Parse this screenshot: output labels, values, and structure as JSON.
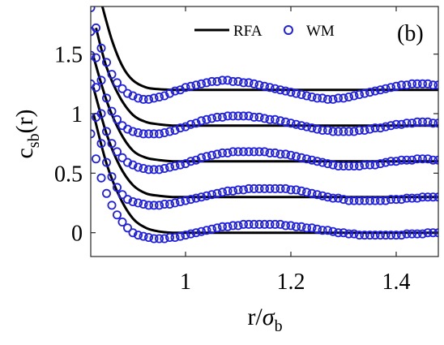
{
  "chart_data": {
    "type": "line",
    "panel_label": "(b)",
    "xlabel": {
      "main": "r/",
      "greek": "σ",
      "sub": "b"
    },
    "ylabel": {
      "main": "c",
      "sub": "sb",
      "tail": "(r)"
    },
    "xlim": [
      0.82,
      1.48
    ],
    "ylim": [
      -0.2,
      1.9
    ],
    "xticks": [
      1,
      1.2,
      1.4
    ],
    "xtick_labels": [
      "1",
      "1.2",
      "1.4"
    ],
    "yticks": [
      0,
      0.5,
      1,
      1.5
    ],
    "ytick_labels": [
      "0",
      "0.5",
      "1",
      "1.5"
    ],
    "grid": false,
    "legend_position": "top",
    "legend": [
      {
        "label": "RFA",
        "style": "line",
        "color": "#000000"
      },
      {
        "label": "WM",
        "style": "circle",
        "color": "#1f1fe6"
      }
    ],
    "colors": {
      "rfa": "#000000",
      "wm": "#1f1fe6"
    },
    "series": [
      {
        "name": "RFA",
        "style": "line",
        "curves": [
          {
            "offset": 0.0,
            "x": [
              0.825,
              0.85,
              0.875,
              0.9,
              0.925,
              0.95,
              0.975,
              1.0,
              1.05,
              1.1,
              1.2,
              1.3,
              1.4,
              1.48
            ],
            "y": [
              1.0,
              0.58,
              0.3,
              0.12,
              0.04,
              0.01,
              0.0,
              0.0,
              0.0,
              0.0,
              0.0,
              0.0,
              0.0,
              0.0
            ]
          },
          {
            "offset": 0.3,
            "x": [
              0.825,
              0.85,
              0.875,
              0.9,
              0.925,
              0.95,
              0.975,
              1.0,
              1.05,
              1.1,
              1.2,
              1.3,
              1.4,
              1.48
            ],
            "y": [
              1.22,
              0.83,
              0.56,
              0.4,
              0.33,
              0.31,
              0.3,
              0.3,
              0.3,
              0.3,
              0.3,
              0.3,
              0.3,
              0.3
            ]
          },
          {
            "offset": 0.6,
            "x": [
              0.825,
              0.85,
              0.875,
              0.9,
              0.925,
              0.95,
              0.975,
              1.0,
              1.05,
              1.1,
              1.2,
              1.3,
              1.4,
              1.48
            ],
            "y": [
              1.48,
              1.11,
              0.85,
              0.69,
              0.63,
              0.61,
              0.6,
              0.6,
              0.6,
              0.6,
              0.6,
              0.6,
              0.6,
              0.6
            ]
          },
          {
            "offset": 0.9,
            "x": [
              0.83,
              0.85,
              0.875,
              0.9,
              0.925,
              0.95,
              0.975,
              1.0,
              1.05,
              1.1,
              1.2,
              1.3,
              1.4,
              1.48
            ],
            "y": [
              1.72,
              1.39,
              1.14,
              0.99,
              0.93,
              0.91,
              0.9,
              0.9,
              0.9,
              0.9,
              0.9,
              0.9,
              0.9,
              0.9
            ]
          },
          {
            "offset": 1.2,
            "x": [
              0.842,
              0.86,
              0.88,
              0.9,
              0.925,
              0.95,
              0.975,
              1.0,
              1.05,
              1.1,
              1.2,
              1.3,
              1.4,
              1.48
            ],
            "y": [
              1.9,
              1.62,
              1.4,
              1.28,
              1.22,
              1.205,
              1.2,
              1.2,
              1.2,
              1.2,
              1.2,
              1.2,
              1.2,
              1.2
            ]
          }
        ]
      },
      {
        "name": "WM",
        "style": "circle",
        "curves": [
          {
            "offset": 0.0,
            "x": [
              0.82,
              0.83,
              0.84,
              0.85,
              0.86,
              0.87,
              0.88,
              0.89,
              0.9,
              0.91,
              0.92,
              0.93,
              0.94,
              0.95,
              0.96,
              0.97,
              0.98,
              0.99,
              1.0,
              1.01,
              1.02,
              1.03,
              1.04,
              1.05,
              1.06,
              1.07,
              1.08,
              1.09,
              1.1,
              1.11,
              1.12,
              1.13,
              1.14,
              1.15,
              1.16,
              1.17,
              1.18,
              1.19,
              1.2,
              1.21,
              1.22,
              1.23,
              1.24,
              1.25,
              1.26,
              1.27,
              1.28,
              1.29,
              1.3,
              1.31,
              1.32,
              1.33,
              1.34,
              1.35,
              1.36,
              1.37,
              1.38,
              1.39,
              1.4,
              1.41,
              1.42,
              1.43,
              1.44,
              1.45,
              1.46,
              1.47,
              1.48
            ],
            "y": [
              0.83,
              0.62,
              0.46,
              0.33,
              0.23,
              0.15,
              0.09,
              0.04,
              0.0,
              -0.02,
              -0.03,
              -0.04,
              -0.05,
              -0.05,
              -0.05,
              -0.04,
              -0.04,
              -0.03,
              -0.02,
              -0.01,
              0.0,
              0.01,
              0.02,
              0.03,
              0.04,
              0.05,
              0.05,
              0.06,
              0.06,
              0.07,
              0.07,
              0.07,
              0.07,
              0.07,
              0.07,
              0.07,
              0.07,
              0.06,
              0.06,
              0.05,
              0.05,
              0.04,
              0.04,
              0.03,
              0.02,
              0.02,
              0.01,
              0.0,
              0.0,
              -0.01,
              -0.01,
              -0.02,
              -0.02,
              -0.02,
              -0.02,
              -0.02,
              -0.02,
              -0.02,
              -0.02,
              -0.02,
              -0.01,
              -0.01,
              -0.01,
              -0.01,
              0.0,
              0.0,
              0.0
            ]
          },
          {
            "offset": 0.3,
            "x": [
              0.82,
              0.83,
              0.84,
              0.85,
              0.86,
              0.87,
              0.88,
              0.89,
              0.9,
              0.91,
              0.92,
              0.93,
              0.94,
              0.95,
              0.96,
              0.97,
              0.98,
              0.99,
              1.0,
              1.01,
              1.02,
              1.03,
              1.04,
              1.05,
              1.06,
              1.07,
              1.08,
              1.09,
              1.1,
              1.11,
              1.12,
              1.13,
              1.14,
              1.15,
              1.16,
              1.17,
              1.18,
              1.19,
              1.2,
              1.21,
              1.22,
              1.23,
              1.24,
              1.25,
              1.26,
              1.27,
              1.28,
              1.29,
              1.3,
              1.31,
              1.32,
              1.33,
              1.34,
              1.35,
              1.36,
              1.37,
              1.38,
              1.39,
              1.4,
              1.41,
              1.42,
              1.43,
              1.44,
              1.45,
              1.46,
              1.47,
              1.48
            ],
            "y": [
              1.25,
              0.97,
              0.75,
              0.59,
              0.47,
              0.38,
              0.32,
              0.28,
              0.26,
              0.25,
              0.24,
              0.23,
              0.23,
              0.23,
              0.24,
              0.24,
              0.25,
              0.26,
              0.27,
              0.28,
              0.29,
              0.3,
              0.31,
              0.32,
              0.33,
              0.34,
              0.35,
              0.35,
              0.36,
              0.36,
              0.37,
              0.37,
              0.37,
              0.37,
              0.37,
              0.37,
              0.37,
              0.37,
              0.36,
              0.36,
              0.35,
              0.34,
              0.33,
              0.32,
              0.31,
              0.3,
              0.29,
              0.29,
              0.28,
              0.27,
              0.27,
              0.27,
              0.27,
              0.27,
              0.27,
              0.27,
              0.27,
              0.28,
              0.28,
              0.28,
              0.29,
              0.29,
              0.29,
              0.3,
              0.3,
              0.3,
              0.3
            ]
          },
          {
            "offset": 0.6,
            "x": [
              0.82,
              0.83,
              0.84,
              0.85,
              0.86,
              0.87,
              0.88,
              0.89,
              0.9,
              0.91,
              0.92,
              0.93,
              0.94,
              0.95,
              0.96,
              0.97,
              0.98,
              0.99,
              1.0,
              1.01,
              1.02,
              1.03,
              1.04,
              1.05,
              1.06,
              1.07,
              1.08,
              1.09,
              1.1,
              1.11,
              1.12,
              1.13,
              1.14,
              1.15,
              1.16,
              1.17,
              1.18,
              1.19,
              1.2,
              1.21,
              1.22,
              1.23,
              1.24,
              1.25,
              1.26,
              1.27,
              1.28,
              1.29,
              1.3,
              1.31,
              1.32,
              1.33,
              1.34,
              1.35,
              1.36,
              1.37,
              1.38,
              1.39,
              1.4,
              1.41,
              1.42,
              1.43,
              1.44,
              1.45,
              1.46,
              1.47,
              1.48
            ],
            "y": [
              1.49,
              1.22,
              1.0,
              0.85,
              0.75,
              0.68,
              0.63,
              0.59,
              0.57,
              0.55,
              0.54,
              0.53,
              0.53,
              0.53,
              0.54,
              0.55,
              0.56,
              0.57,
              0.58,
              0.6,
              0.61,
              0.63,
              0.64,
              0.65,
              0.66,
              0.67,
              0.67,
              0.68,
              0.68,
              0.68,
              0.68,
              0.68,
              0.68,
              0.68,
              0.67,
              0.67,
              0.66,
              0.66,
              0.65,
              0.64,
              0.63,
              0.62,
              0.61,
              0.6,
              0.59,
              0.58,
              0.57,
              0.56,
              0.56,
              0.56,
              0.56,
              0.56,
              0.57,
              0.57,
              0.57,
              0.58,
              0.59,
              0.6,
              0.6,
              0.61,
              0.61,
              0.61,
              0.62,
              0.62,
              0.62,
              0.61,
              0.61
            ]
          },
          {
            "offset": 0.9,
            "x": [
              0.82,
              0.83,
              0.84,
              0.85,
              0.86,
              0.87,
              0.88,
              0.89,
              0.9,
              0.91,
              0.92,
              0.93,
              0.94,
              0.95,
              0.96,
              0.97,
              0.98,
              0.99,
              1.0,
              1.01,
              1.02,
              1.03,
              1.04,
              1.05,
              1.06,
              1.07,
              1.08,
              1.09,
              1.1,
              1.11,
              1.12,
              1.13,
              1.14,
              1.15,
              1.16,
              1.17,
              1.18,
              1.19,
              1.2,
              1.21,
              1.22,
              1.23,
              1.24,
              1.25,
              1.26,
              1.27,
              1.28,
              1.29,
              1.3,
              1.31,
              1.32,
              1.33,
              1.34,
              1.35,
              1.36,
              1.37,
              1.38,
              1.39,
              1.4,
              1.41,
              1.42,
              1.43,
              1.44,
              1.45,
              1.46,
              1.47,
              1.48
            ],
            "y": [
              1.69,
              1.47,
              1.28,
              1.13,
              1.02,
              0.95,
              0.9,
              0.87,
              0.85,
              0.84,
              0.83,
              0.83,
              0.83,
              0.83,
              0.84,
              0.85,
              0.86,
              0.88,
              0.89,
              0.91,
              0.92,
              0.94,
              0.95,
              0.96,
              0.97,
              0.97,
              0.98,
              0.98,
              0.98,
              0.98,
              0.98,
              0.97,
              0.97,
              0.96,
              0.95,
              0.95,
              0.94,
              0.93,
              0.92,
              0.91,
              0.9,
              0.89,
              0.88,
              0.87,
              0.86,
              0.86,
              0.85,
              0.85,
              0.85,
              0.85,
              0.85,
              0.86,
              0.86,
              0.87,
              0.88,
              0.88,
              0.89,
              0.9,
              0.91,
              0.91,
              0.92,
              0.92,
              0.93,
              0.93,
              0.93,
              0.92,
              0.92
            ]
          },
          {
            "offset": 1.2,
            "x": [
              0.82,
              0.83,
              0.84,
              0.85,
              0.86,
              0.87,
              0.88,
              0.89,
              0.9,
              0.91,
              0.92,
              0.93,
              0.94,
              0.95,
              0.96,
              0.97,
              0.98,
              0.99,
              1.0,
              1.01,
              1.02,
              1.03,
              1.04,
              1.05,
              1.06,
              1.07,
              1.08,
              1.09,
              1.1,
              1.11,
              1.12,
              1.13,
              1.14,
              1.15,
              1.16,
              1.17,
              1.18,
              1.19,
              1.2,
              1.21,
              1.22,
              1.23,
              1.24,
              1.25,
              1.26,
              1.27,
              1.28,
              1.29,
              1.3,
              1.31,
              1.32,
              1.33,
              1.34,
              1.35,
              1.36,
              1.37,
              1.38,
              1.39,
              1.4,
              1.41,
              1.42,
              1.43,
              1.44,
              1.45,
              1.46,
              1.47,
              1.48
            ],
            "y": [
              1.89,
              1.72,
              1.55,
              1.43,
              1.33,
              1.26,
              1.21,
              1.17,
              1.15,
              1.13,
              1.12,
              1.12,
              1.13,
              1.14,
              1.15,
              1.17,
              1.19,
              1.2,
              1.22,
              1.23,
              1.24,
              1.25,
              1.26,
              1.27,
              1.27,
              1.28,
              1.28,
              1.27,
              1.27,
              1.26,
              1.26,
              1.25,
              1.24,
              1.23,
              1.22,
              1.21,
              1.2,
              1.19,
              1.18,
              1.17,
              1.16,
              1.15,
              1.14,
              1.13,
              1.13,
              1.12,
              1.12,
              1.13,
              1.13,
              1.14,
              1.15,
              1.16,
              1.17,
              1.18,
              1.19,
              1.2,
              1.21,
              1.22,
              1.23,
              1.24,
              1.24,
              1.25,
              1.25,
              1.25,
              1.25,
              1.24,
              1.24
            ]
          }
        ]
      }
    ]
  }
}
